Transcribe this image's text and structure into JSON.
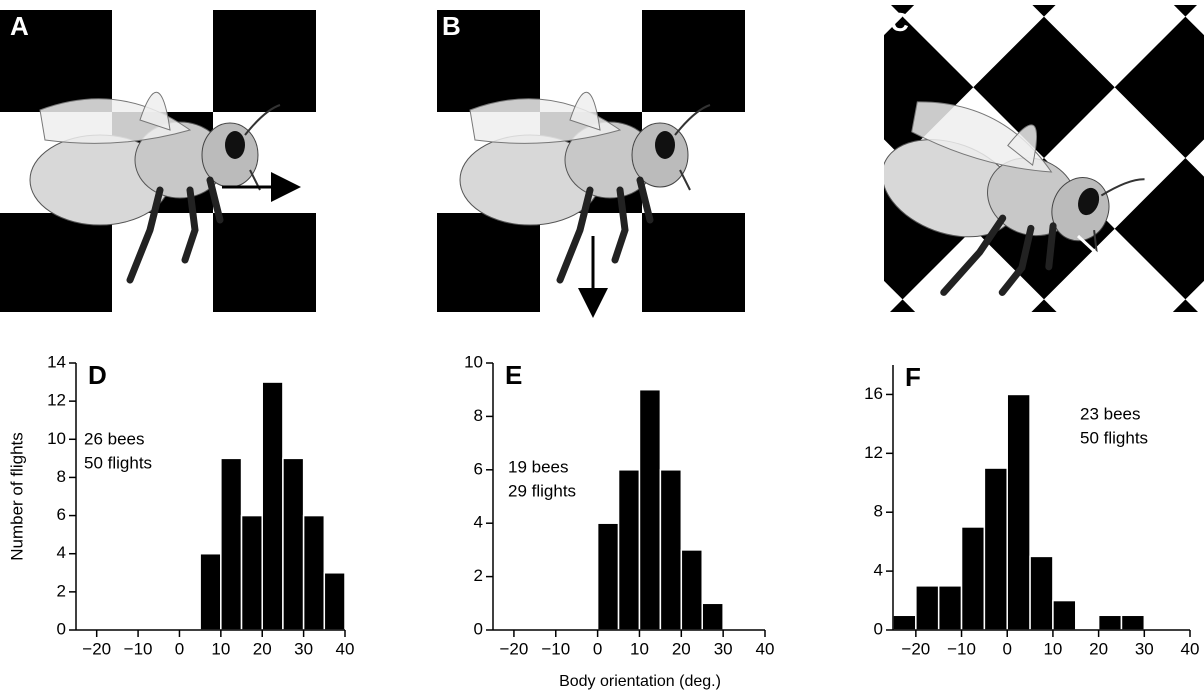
{
  "panel_labels": [
    "A",
    "B",
    "C"
  ],
  "chart_data": [
    {
      "type": "histogram",
      "panel": "D",
      "ylabel": "Number of flights",
      "annotations": [
        "26 bees",
        "50 flights"
      ],
      "bins": [
        5,
        10,
        15,
        20,
        25,
        30,
        35,
        40
      ],
      "counts": [
        4,
        9,
        6,
        13,
        9,
        6,
        3
      ],
      "color": "#000000",
      "xlim": [
        -25,
        40
      ],
      "xticks": [
        {
          "value": -20,
          "label": "−20"
        },
        {
          "value": -10,
          "label": "−10"
        },
        0,
        10,
        20,
        30,
        40
      ],
      "ylim": [
        0,
        14
      ],
      "yticks": [
        0,
        2,
        4,
        6,
        8,
        10,
        12,
        14
      ]
    },
    {
      "type": "histogram",
      "panel": "E",
      "xlabel": "Body orientation (deg.)",
      "annotations": [
        "19 bees",
        "29 flights"
      ],
      "bins": [
        0,
        5,
        10,
        15,
        20,
        25,
        30
      ],
      "counts": [
        4,
        6,
        9,
        6,
        3,
        1
      ],
      "color": "#000000",
      "xlim": [
        -25,
        40
      ],
      "xticks": [
        {
          "value": -20,
          "label": "−20"
        },
        {
          "value": -10,
          "label": "−10"
        },
        0,
        10,
        20,
        30,
        40
      ],
      "ylim": [
        0,
        10
      ],
      "yticks": [
        0,
        2,
        4,
        6,
        8,
        10
      ]
    },
    {
      "type": "histogram",
      "panel": "F",
      "annotations": [
        "23 bees",
        "50 flights"
      ],
      "bins": [
        -25,
        -20,
        -15,
        -10,
        -5,
        0,
        5,
        10,
        15,
        20,
        25,
        30
      ],
      "counts": [
        1,
        3,
        3,
        7,
        11,
        16,
        5,
        2,
        0,
        1,
        1
      ],
      "color": "#000000",
      "xlim": [
        -25,
        40
      ],
      "xticks": [
        {
          "value": -20,
          "label": "−20"
        },
        {
          "value": -10,
          "label": "−10"
        },
        0,
        10,
        20,
        30,
        40
      ],
      "ylim": [
        0,
        18
      ],
      "yticks": [
        0,
        4,
        8,
        12,
        16
      ]
    }
  ]
}
